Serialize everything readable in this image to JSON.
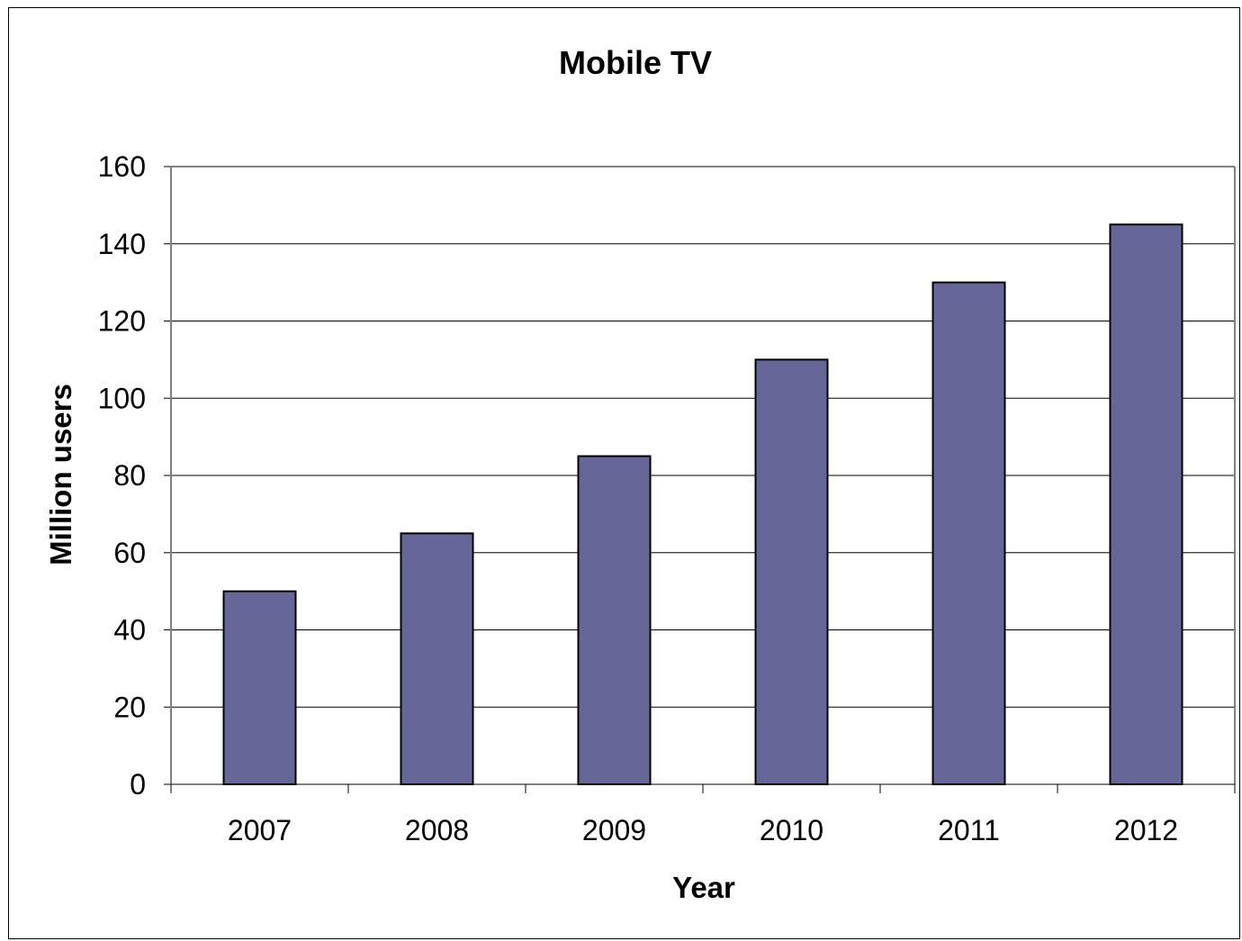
{
  "chart_data": {
    "type": "bar",
    "title": "Mobile TV",
    "xlabel": "Year",
    "ylabel": "Million users",
    "categories": [
      "2007",
      "2008",
      "2009",
      "2010",
      "2011",
      "2012"
    ],
    "values": [
      50,
      65,
      85,
      110,
      130,
      145
    ],
    "ylim": [
      0,
      160
    ],
    "yticks": [
      "0",
      "20",
      "40",
      "60",
      "80",
      "100",
      "120",
      "140",
      "160"
    ],
    "grid": true,
    "legend": "none",
    "colors": {
      "bar_fill": "#666699",
      "bar_stroke": "#000000",
      "grid": "#000000",
      "axis": "#808080"
    }
  }
}
